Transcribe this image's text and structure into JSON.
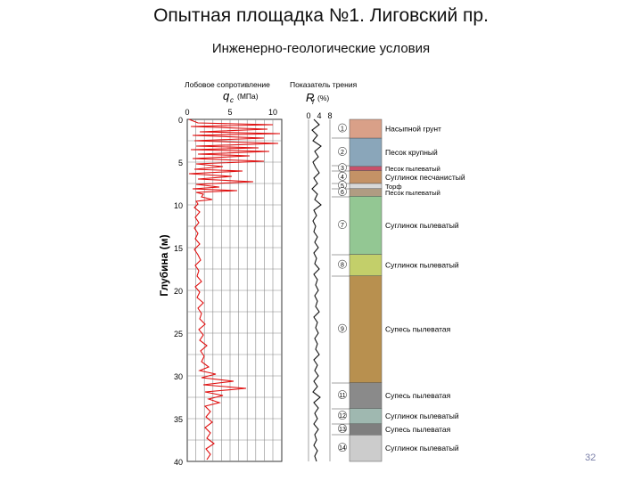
{
  "title": "Опытная площадка №1. Лиговский пр.",
  "subtitle": "Инженерно-геологические условия",
  "page_number": "32",
  "log": {
    "depth_axis_label": "Глубина (м)",
    "depth_ticks": [
      "0",
      "5",
      "10",
      "15",
      "20",
      "25",
      "30",
      "35",
      "40"
    ],
    "cone_header": "Лобовое сопротивление",
    "cone_symbol": "q",
    "cone_symbol_sub": "c",
    "cone_unit": "(МПа)",
    "cone_ticks": [
      "0",
      "5",
      "10"
    ],
    "friction_header": "Показатель трения",
    "friction_symbol": "R",
    "friction_symbol_sub": "f",
    "friction_unit": "(%)",
    "friction_ticks": [
      "0",
      "4",
      "8"
    ],
    "line_color": "#e01010",
    "friction_color": "#111111"
  },
  "layers": [
    {
      "num": "1",
      "name": "Насыпной грунт",
      "top": 0,
      "bottom": 2.2,
      "color": "#d9a088"
    },
    {
      "num": "2",
      "name": "Песок крупный",
      "top": 2.2,
      "bottom": 5.5,
      "color": "#8aa6ba"
    },
    {
      "num": "3",
      "name": "Песок пылеватый",
      "top": 5.5,
      "bottom": 6.0,
      "color": "#c8506a"
    },
    {
      "num": "4",
      "name": "Суглинок песчанистый",
      "top": 6.0,
      "bottom": 7.5,
      "color": "#c49266"
    },
    {
      "num": "5",
      "name": "Торф",
      "top": 7.5,
      "bottom": 8.1,
      "color": "#d8d8d8"
    },
    {
      "num": "6",
      "name": "Песок пылеватый",
      "top": 8.1,
      "bottom": 9.0,
      "color": "#b09c82"
    },
    {
      "num": "7",
      "name": "Суглинок пылеватый",
      "top": 9.0,
      "bottom": 15.8,
      "color": "#93c793"
    },
    {
      "num": "8",
      "name": "Суглинок пылеватый",
      "top": 15.8,
      "bottom": 18.3,
      "color": "#c3cf6a"
    },
    {
      "num": "9",
      "name": "Супесь пылеватая",
      "top": 18.3,
      "bottom": 30.8,
      "color": "#b8904f"
    },
    {
      "num": "11",
      "name": "Супесь пылеватая",
      "top": 30.8,
      "bottom": 33.8,
      "color": "#8a8a8a"
    },
    {
      "num": "12",
      "name": "Суглинок пылеватый",
      "top": 33.8,
      "bottom": 35.6,
      "color": "#9fb8b0"
    },
    {
      "num": "13",
      "name": "Супесь пылеватая",
      "top": 35.6,
      "bottom": 36.9,
      "color": "#7f7f7f"
    },
    {
      "num": "14",
      "name": "Суглинок пылеватый",
      "top": 36.9,
      "bottom": 40.0,
      "color": "#cccccc"
    }
  ]
}
